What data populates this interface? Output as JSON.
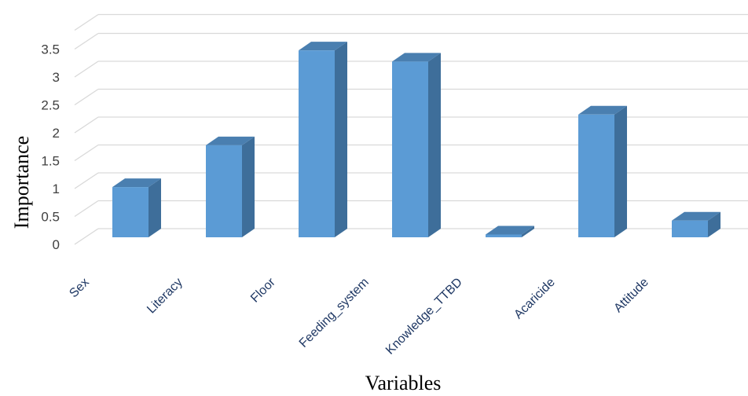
{
  "chart_data": {
    "type": "bar",
    "title": "",
    "xlabel": "Variables",
    "ylabel": "Importance",
    "categories": [
      "Sex",
      "Literacy",
      "Floor",
      "Feeding_system",
      "Knowledge_TTBD",
      "Acaricide",
      "Attitude"
    ],
    "values": [
      0.9,
      1.65,
      3.35,
      3.15,
      0.05,
      2.2,
      0.3
    ],
    "ylim": [
      0,
      3.5
    ],
    "yticks": [
      "0",
      "0.5",
      "1",
      "1.5",
      "2",
      "2.5",
      "3",
      "3.5"
    ],
    "grid": true,
    "legend": "none",
    "colors": {
      "bar_front": "#5b9bd5",
      "bar_side": "#3e6e9a",
      "bar_top": "#4a7fb0",
      "grid": "#d9d9d9"
    }
  }
}
